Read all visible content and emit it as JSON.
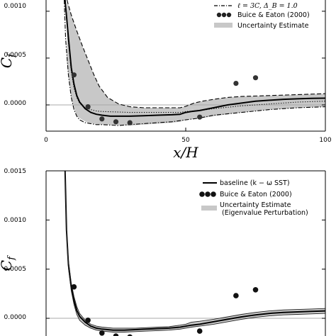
{
  "chart_data": [
    {
      "type": "line",
      "xlabel": "x/H",
      "ylabel": "C_f",
      "xlim": [
        0,
        100
      ],
      "ylim": [
        -0.00028,
        0.00112
      ],
      "xticks": [
        "0",
        "50",
        "100"
      ],
      "yticks": [
        "0.0000",
        "0.0005",
        "0.0010"
      ],
      "grid": false,
      "legend_position": "top-right",
      "reference_line": 0,
      "series": [
        {
          "name": "",
          "style": "solid",
          "x": [
            6.8,
            8,
            9,
            10,
            11,
            12,
            14,
            16,
            18,
            20,
            23,
            26,
            30,
            35,
            40,
            45,
            48,
            50,
            52,
            55,
            60,
            65,
            70,
            75,
            80,
            85,
            90,
            95,
            100
          ],
          "y": [
            0.00112,
            0.00072,
            0.0004,
            0.00022,
            0.0001,
            3e-05,
            -4e-05,
            -8e-05,
            -0.0001,
            -0.00011,
            -0.00012,
            -0.00012,
            -0.00012,
            -0.000115,
            -0.00011,
            -0.000105,
            -0.0001,
            -8e-05,
            -7e-05,
            -6e-05,
            -3e-05,
            0,
            2e-05,
            4e-05,
            5e-05,
            6e-05,
            6.5e-05,
            7e-05,
            7.2e-05
          ]
        },
        {
          "name": "",
          "style": "dotted",
          "x": [
            6.8,
            8,
            9,
            10,
            11,
            12,
            14,
            16,
            18,
            20,
            25,
            30,
            40,
            48,
            50,
            55,
            60,
            70,
            80,
            90,
            100
          ],
          "y": [
            0.00112,
            0.00068,
            0.00036,
            0.00018,
            8e-05,
            2e-05,
            -3e-05,
            -5e-05,
            -6.5e-05,
            -7e-05,
            -7.5e-05,
            -8e-05,
            -8e-05,
            -8e-05,
            -7e-05,
            -6e-05,
            -4e-05,
            -1e-05,
            1e-05,
            3e-05,
            4e-05
          ]
        },
        {
          "name": "",
          "style": "dashed",
          "x": [
            7.5,
            9,
            11,
            13,
            15,
            17,
            19,
            22,
            26,
            30,
            35,
            40,
            45,
            48,
            50,
            53,
            56,
            60,
            65,
            70,
            80,
            90,
            100
          ],
          "y": [
            0.00112,
            0.00096,
            0.00079,
            0.00063,
            0.00048,
            0.00033,
            0.0002,
            8e-05,
            1e-05,
            -2e-05,
            -3e-05,
            -3e-05,
            -3e-05,
            -3e-05,
            -1.5e-05,
            2e-05,
            4e-05,
            6e-05,
            8e-05,
            9e-05,
            0.0001,
            0.00011,
            0.00012
          ]
        },
        {
          "name": "ℓ = 3C, Δ_B = 1.0",
          "style": "dashdot",
          "x": [
            6.5,
            7,
            8,
            9,
            10,
            11,
            12,
            14,
            16,
            18,
            20,
            23,
            26,
            30,
            35,
            40,
            45,
            50,
            55,
            60,
            70,
            80,
            90,
            100
          ],
          "y": [
            0.00112,
            0.0007,
            0.00032,
            8e-05,
            -5e-05,
            -0.00012,
            -0.00016,
            -0.00019,
            -0.0002,
            -0.00021,
            -0.00021,
            -0.000215,
            -0.00022,
            -0.00021,
            -0.0002,
            -0.00019,
            -0.00018,
            -0.00016,
            -0.00014,
            -0.00011,
            -8e-05,
            -5e-05,
            -3e-05,
            -2e-05
          ]
        }
      ],
      "markers": {
        "name": "Buice & Eaton (2000)",
        "x": [
          10,
          15,
          20,
          25,
          30,
          55,
          68,
          75
        ],
        "y": [
          0.00032,
          -2e-05,
          -0.00015,
          -0.00018,
          -0.00019,
          -0.00013,
          0.00023,
          0.00029
        ]
      },
      "band": {
        "name": "Uncertainty Estimate",
        "color": "#c8c8c8",
        "x": [
          7.5,
          9,
          11,
          13,
          15,
          17,
          19,
          22,
          26,
          30,
          35,
          40,
          45,
          48,
          50,
          53,
          56,
          60,
          65,
          70,
          80,
          90,
          100
        ],
        "upper": [
          0.00112,
          0.00096,
          0.00079,
          0.00063,
          0.00048,
          0.00033,
          0.0002,
          8e-05,
          1e-05,
          -2e-05,
          -3e-05,
          -3e-05,
          -3e-05,
          -3e-05,
          -1.5e-05,
          2e-05,
          4e-05,
          6e-05,
          8e-05,
          9e-05,
          0.0001,
          0.00011,
          0.00012
        ],
        "lower": [
          0.00045,
          8e-05,
          -0.00012,
          -0.00016,
          -0.00019,
          -0.0002,
          -0.00021,
          -0.00021,
          -0.000215,
          -0.00022,
          -0.00021,
          -0.0002,
          -0.00019,
          -0.00018,
          -0.00016,
          -0.00015,
          -0.00014,
          -0.00012,
          -0.0001,
          -8e-05,
          -5e-05,
          -3e-05,
          -2e-05
        ]
      },
      "legend": [
        "ℓ = 3C, Δ_B = 1.0",
        "Buice & Eaton (2000)",
        "Uncertainty Estimate"
      ]
    },
    {
      "type": "line",
      "xlabel": "",
      "ylabel": "C_f",
      "xlim": [
        0,
        100
      ],
      "ylim": [
        -0.00018,
        0.0015
      ],
      "yticks": [
        "0.0000",
        "0.0005",
        "0.0010",
        "0.0015"
      ],
      "grid": false,
      "legend_position": "top-right",
      "reference_line": 0,
      "series": [
        {
          "name": "baseline (k − ω SST)",
          "style": "solid",
          "x": [
            6.8,
            7.3,
            8,
            9,
            10,
            11,
            12,
            14,
            16,
            18,
            20,
            24,
            28,
            32,
            36,
            40,
            44,
            48,
            50,
            52,
            55,
            60,
            65,
            70,
            75,
            80,
            85,
            90,
            95,
            100
          ],
          "y": [
            0.0015,
            0.0009,
            0.00055,
            0.00032,
            0.00018,
            8e-05,
            2e-05,
            -4e-05,
            -8e-05,
            -0.0001,
            -0.00011,
            -0.00012,
            -0.00012,
            -0.000115,
            -0.00011,
            -0.000105,
            -0.0001,
            -9e-05,
            -8e-05,
            -7e-05,
            -6e-05,
            -3.5e-05,
            -1e-05,
            1.5e-05,
            3.5e-05,
            5e-05,
            6e-05,
            6.5e-05,
            7e-05,
            7.5e-05
          ]
        }
      ],
      "markers": {
        "name": "Buice & Eaton (2000)",
        "x": [
          10,
          15,
          20,
          25,
          30,
          55,
          68,
          75
        ],
        "y": [
          0.00032,
          -2e-05,
          -0.00015,
          -0.00018,
          -0.00019,
          -0.00013,
          0.00023,
          0.00029
        ]
      },
      "band": {
        "name": "Uncertainty Estimate (Eigenvalue Perturbation)",
        "color": "#c8c8c8",
        "x": [
          6.8,
          7.3,
          8,
          9,
          10,
          11,
          12,
          14,
          16,
          18,
          20,
          24,
          28,
          32,
          36,
          40,
          44,
          48,
          50,
          52,
          55,
          60,
          65,
          70,
          75,
          80,
          85,
          90,
          95,
          100
        ],
        "upper": [
          0.0015,
          0.00093,
          0.00059,
          0.00036,
          0.00022,
          0.00012,
          5e-05,
          -2e-05,
          -6e-05,
          -8e-05,
          -9e-05,
          -0.0001,
          -0.0001,
          -0.0001,
          -9.5e-05,
          -9e-05,
          -8.5e-05,
          -7e-05,
          -6e-05,
          -4e-05,
          -3e-05,
          -1e-05,
          1.5e-05,
          4e-05,
          6e-05,
          7.5e-05,
          8.5e-05,
          9e-05,
          9.5e-05,
          0.0001
        ],
        "lower": [
          0.0015,
          0.00087,
          0.00051,
          0.00028,
          0.00014,
          4e-05,
          -2e-05,
          -7e-05,
          -0.0001,
          -0.00012,
          -0.00013,
          -0.00014,
          -0.00014,
          -0.000135,
          -0.00013,
          -0.000125,
          -0.00012,
          -0.00011,
          -0.0001,
          -9e-05,
          -8e-05,
          -6e-05,
          -3.5e-05,
          -1e-05,
          1e-05,
          2.5e-05,
          3.5e-05,
          4e-05,
          4.5e-05,
          5e-05
        ]
      },
      "legend": [
        "baseline (k − ω SST)",
        "Buice & Eaton (2000)",
        "Uncertainty Estimate",
        "(Eigenvalue Perturbation)"
      ]
    }
  ]
}
